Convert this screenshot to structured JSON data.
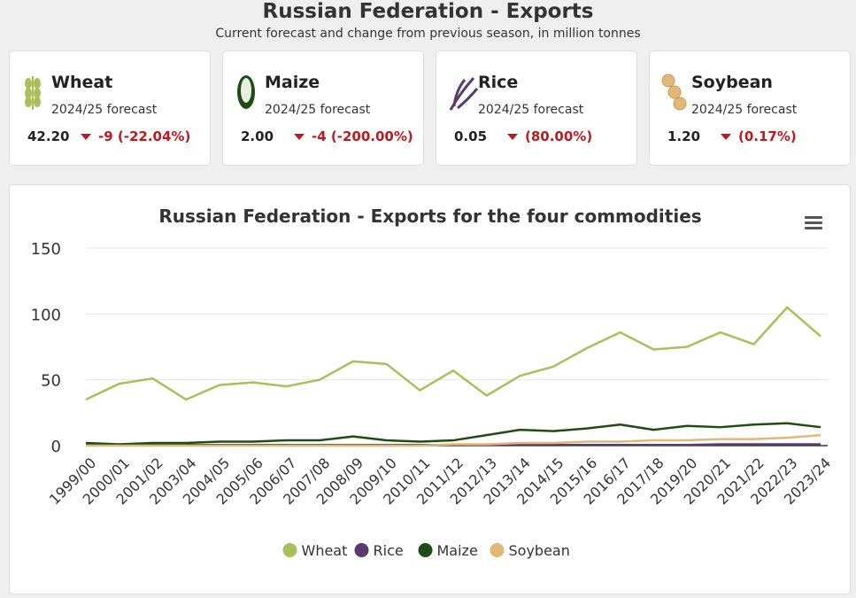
{
  "header": {
    "title": "Russian Federation - Exports",
    "subtitle": "Current forecast and change from previous season, in million tonnes"
  },
  "cards": [
    {
      "name": "Wheat",
      "subtitle": "2024/25 forecast",
      "value": "42.20",
      "change": "-9 (-22.04%)"
    },
    {
      "name": "Maize",
      "subtitle": "2024/25 forecast",
      "value": "2.00",
      "change": "-4 (-200.00%)"
    },
    {
      "name": "Rice",
      "subtitle": "2024/25 forecast",
      "value": "0.05",
      "change": "(80.00%)"
    },
    {
      "name": "Soybean",
      "subtitle": "2024/25 forecast",
      "value": "1.20",
      "change": "(0.17%)"
    }
  ],
  "chart_data": {
    "type": "line",
    "title": "Russian Federation - Exports for the four commodities",
    "categories": [
      "1999/00",
      "2000/01",
      "2001/02",
      "2003/04",
      "2004/05",
      "2005/06",
      "2006/07",
      "2007/08",
      "2008/09",
      "2009/10",
      "2010/11",
      "2011/12",
      "2012/13",
      "2013/14",
      "2014/15",
      "2015/16",
      "2016/17",
      "2017/18",
      "2019/20",
      "2020/21",
      "2021/22",
      "2022/23",
      "2023/24"
    ],
    "series": [
      {
        "name": "Wheat",
        "color": "#a9c05a",
        "values": [
          35,
          47,
          51,
          35,
          46,
          48,
          45,
          50,
          64,
          62,
          42,
          57,
          38,
          53,
          60,
          74,
          86,
          73,
          75,
          86,
          77,
          105,
          83
        ]
      },
      {
        "name": "Rice",
        "color": "#5b3b6e",
        "values": [
          0.5,
          0.5,
          0.5,
          0.5,
          0.5,
          0.5,
          0.5,
          0.5,
          0.5,
          0.5,
          0.5,
          0.5,
          0.5,
          0.5,
          0.5,
          0.5,
          0.5,
          0.5,
          0.5,
          1,
          1,
          1,
          1
        ]
      },
      {
        "name": "Maize",
        "color": "#1d4d12",
        "values": [
          2,
          1,
          2,
          2,
          3,
          3,
          4,
          4,
          7,
          4,
          3,
          4,
          8,
          12,
          11,
          13,
          16,
          12,
          15,
          14,
          16,
          17,
          14
        ]
      },
      {
        "name": "Soybean",
        "color": "#e0b877",
        "values": [
          0,
          0,
          0,
          0,
          0,
          0,
          0,
          0,
          0,
          0,
          0,
          1,
          1,
          2,
          2,
          3,
          3,
          4,
          4,
          5,
          5,
          6,
          8
        ]
      }
    ],
    "ylim": [
      0,
      150
    ],
    "yticks": [
      0,
      50,
      100,
      150
    ],
    "grid": true,
    "legend": "bottom"
  }
}
